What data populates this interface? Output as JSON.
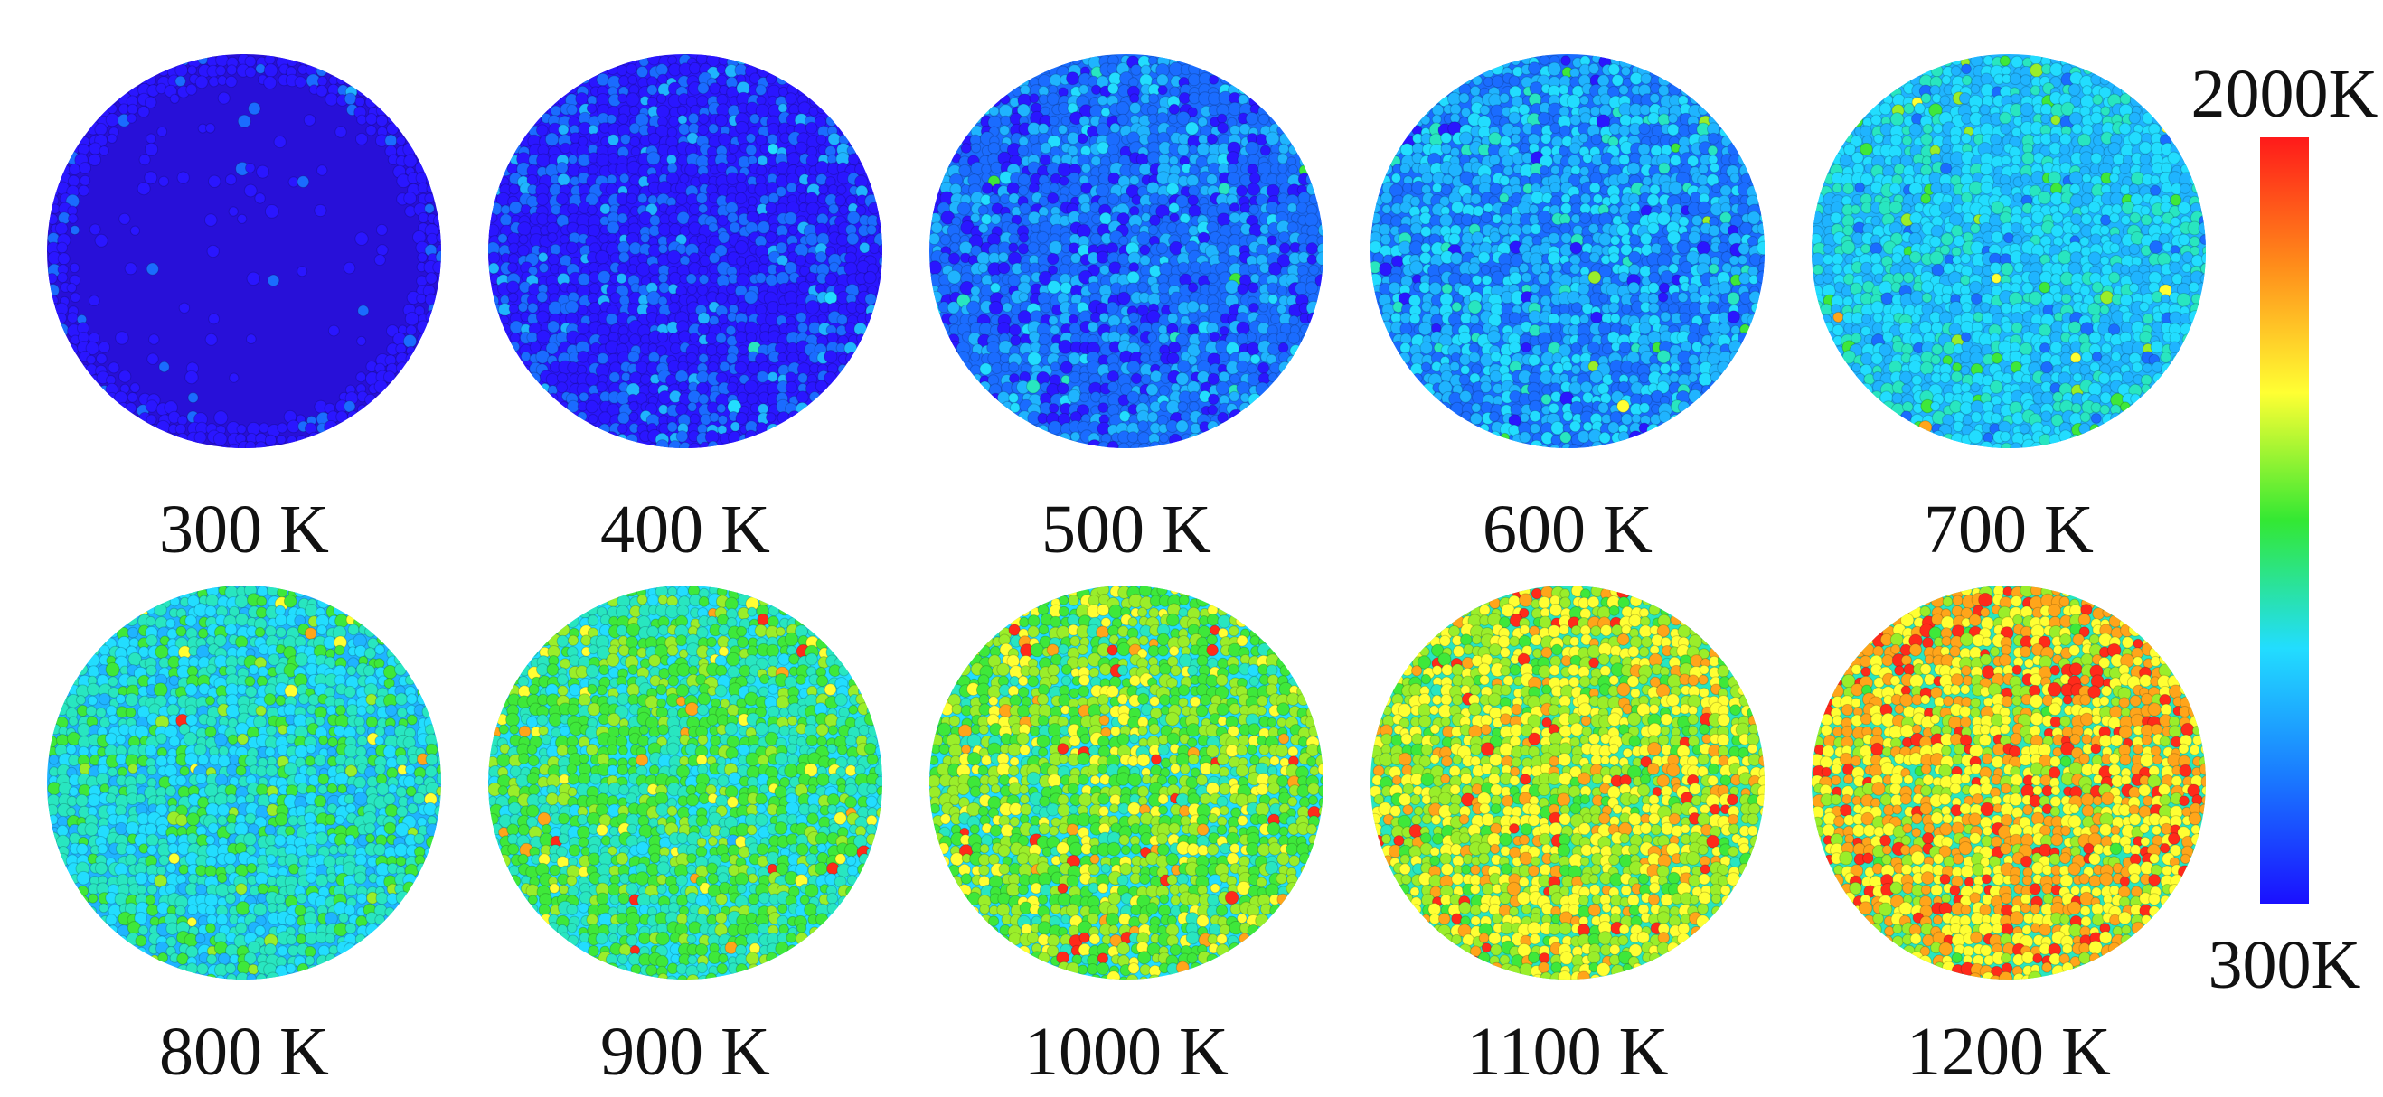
{
  "panels": [
    {
      "label": "300 K",
      "temperature_K": 300
    },
    {
      "label": "400 K",
      "temperature_K": 400
    },
    {
      "label": "500 K",
      "temperature_K": 500
    },
    {
      "label": "600 K",
      "temperature_K": 600
    },
    {
      "label": "700 K",
      "temperature_K": 700
    },
    {
      "label": "800 K",
      "temperature_K": 800
    },
    {
      "label": "900 K",
      "temperature_K": 900
    },
    {
      "label": "1000 K",
      "temperature_K": 1000
    },
    {
      "label": "1100 K",
      "temperature_K": 1100
    },
    {
      "label": "1200 K",
      "temperature_K": 1200
    }
  ],
  "colorbar": {
    "max_label": "2000K",
    "min_label": "300K",
    "colors": [
      "#1a10ff",
      "#1a7bff",
      "#22ddff",
      "#33e833",
      "#ffff33",
      "#ff8c1a",
      "#ff1a1a"
    ]
  },
  "colors": {
    "particle_palette": [
      "#2a16ff",
      "#1a6cff",
      "#1fb4ff",
      "#22ddff",
      "#28e6c0",
      "#3ee83a",
      "#9aee2a",
      "#ffff33",
      "#ffa51a",
      "#ff2a1a"
    ],
    "dense_core": "#2810d8"
  }
}
